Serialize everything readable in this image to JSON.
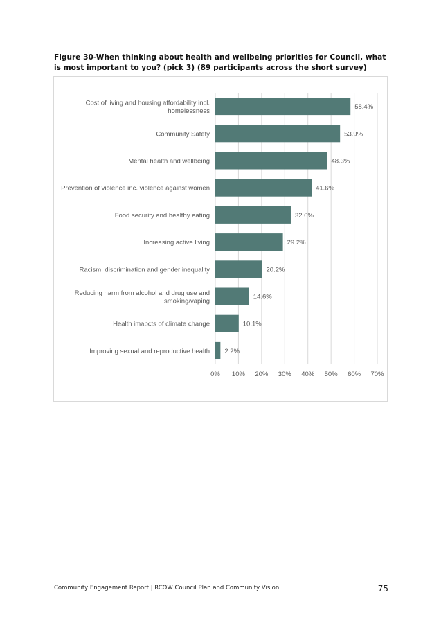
{
  "figure_title": "Figure 30-When thinking about health and wellbeing priorities for Council, what is most important to you? (pick 3) (89 participants across the short survey)",
  "colors": {
    "bar": "#527a76",
    "grid": "#d9d9d9",
    "label": "#595959"
  },
  "chart_data": {
    "type": "bar",
    "orientation": "horizontal",
    "categories": [
      "Cost of living and housing affordability incl. homelessness",
      "Community Safety",
      "Mental health and wellbeing",
      "Prevention of violence inc. violence against women",
      "Food security and healthy eating",
      "Increasing active living",
      "Racism, discrimination and gender inequality",
      "Reducing harm from alcohol and drug use and smoking/vaping",
      "Health imapcts of climate change",
      "Improving sexual and reproductive health"
    ],
    "category_lines": [
      [
        "Cost of living and housing affordability incl.",
        "homelessness"
      ],
      [
        "Community Safety"
      ],
      [
        "Mental health and wellbeing"
      ],
      [
        "Prevention of violence inc. violence against women"
      ],
      [
        "Food security and healthy eating"
      ],
      [
        "Increasing active living"
      ],
      [
        "Racism, discrimination and gender inequality"
      ],
      [
        "Reducing harm from alcohol and drug use and",
        "smoking/vaping"
      ],
      [
        "Health imapcts of climate change"
      ],
      [
        "Improving sexual and reproductive health"
      ]
    ],
    "values": [
      58.4,
      53.9,
      48.3,
      41.6,
      32.6,
      29.2,
      20.2,
      14.6,
      10.1,
      2.2
    ],
    "data_labels": [
      "58.4%",
      "53.9%",
      "48.3%",
      "41.6%",
      "32.6%",
      "29.2%",
      "20.2%",
      "14.6%",
      "10.1%",
      "2.2%"
    ],
    "x_ticks": [
      0,
      10,
      20,
      30,
      40,
      50,
      60,
      70
    ],
    "x_tick_labels": [
      "0%",
      "10%",
      "20%",
      "30%",
      "40%",
      "50%",
      "60%",
      "70%"
    ],
    "xlim": [
      0,
      70
    ],
    "grid": true,
    "legend": "none"
  },
  "footer": {
    "text": "Community Engagement Report | RCOW Council Plan and Community Vision",
    "page_number": "75"
  }
}
